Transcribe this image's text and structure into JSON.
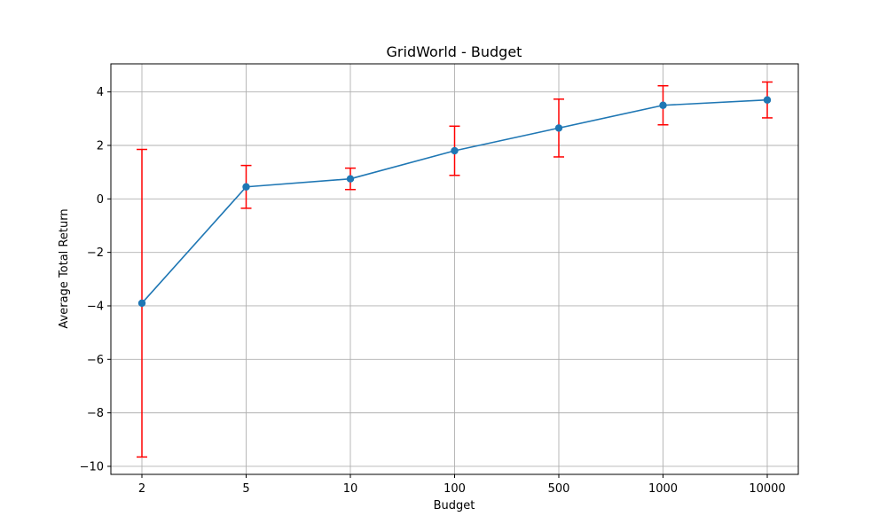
{
  "chart_data": {
    "type": "line",
    "title": "GridWorld - Budget",
    "xlabel": "Budget",
    "ylabel": "Average Total Return",
    "categories": [
      "2",
      "5",
      "10",
      "100",
      "500",
      "1000",
      "10000"
    ],
    "series": [
      {
        "values": [
          -3.9,
          0.45,
          0.75,
          1.8,
          2.65,
          3.5,
          3.7
        ],
        "error": [
          5.75,
          0.8,
          0.4,
          0.92,
          1.08,
          0.73,
          0.67
        ]
      }
    ],
    "ylim": [
      -10.3,
      5.05
    ],
    "yticks": [
      {
        "value": 4,
        "label": "4"
      },
      {
        "value": 2,
        "label": "2"
      },
      {
        "value": 0,
        "label": "0"
      },
      {
        "value": -2,
        "label": "−2"
      },
      {
        "value": -4,
        "label": "−4"
      },
      {
        "value": -6,
        "label": "−6"
      },
      {
        "value": -8,
        "label": "−8"
      },
      {
        "value": -10,
        "label": "−10"
      }
    ],
    "grid": true,
    "colors": {
      "line": "#1f77b4",
      "marker": "#1f77b4",
      "errorbar": "#ff0000",
      "grid": "#b0b0b0",
      "axes": "#000000"
    }
  }
}
